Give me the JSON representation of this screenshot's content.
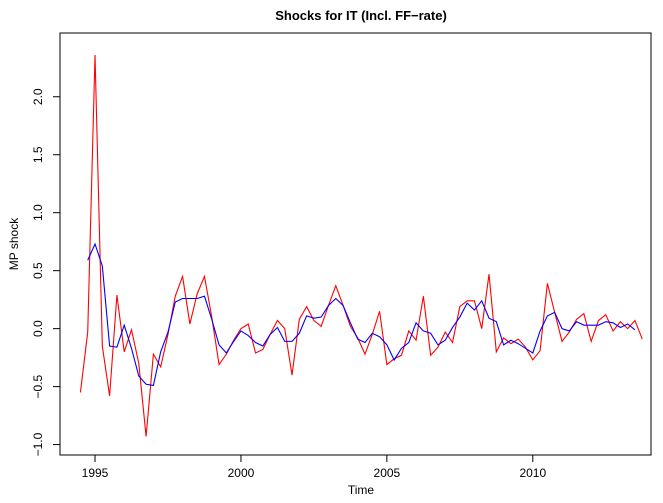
{
  "chart_data": {
    "type": "line",
    "title": "Shocks for IT (Incl. FF−rate)",
    "x_label": "Time",
    "y_label": "MP shock",
    "x": [
      1994.5,
      1994.75,
      1995,
      1995.25,
      1995.5,
      1995.75,
      1996,
      1996.25,
      1996.5,
      1996.75,
      1997,
      1997.25,
      1997.5,
      1997.75,
      1998,
      1998.25,
      1998.5,
      1998.75,
      1999,
      1999.25,
      1999.5,
      1999.75,
      2000,
      2000.25,
      2000.5,
      2000.75,
      2001,
      2001.25,
      2001.5,
      2001.75,
      2002,
      2002.25,
      2002.5,
      2002.75,
      2003,
      2003.25,
      2003.5,
      2003.75,
      2004,
      2004.25,
      2004.5,
      2004.75,
      2005,
      2005.25,
      2005.5,
      2005.75,
      2006,
      2006.25,
      2006.5,
      2006.75,
      2007,
      2007.25,
      2007.5,
      2007.75,
      2008,
      2008.25,
      2008.5,
      2008.75,
      2009,
      2009.25,
      2009.5,
      2009.75,
      2010,
      2010.25,
      2010.5,
      2010.75,
      2011,
      2011.25,
      2011.5,
      2011.75,
      2012,
      2012.25,
      2012.5,
      2012.75,
      2013,
      2013.25,
      2013.5,
      2013.75
    ],
    "series": [
      {
        "color": "#ff0000",
        "values": [
          -0.55,
          -0.03,
          2.36,
          -0.15,
          -0.58,
          0.29,
          -0.2,
          -0.01,
          -0.3,
          -0.93,
          -0.22,
          -0.33,
          -0.05,
          0.28,
          0.45,
          0.04,
          0.3,
          0.45,
          0.1,
          -0.31,
          -0.22,
          -0.1,
          0.0,
          0.04,
          -0.21,
          -0.18,
          -0.05,
          0.07,
          0.0,
          -0.4,
          0.08,
          0.19,
          0.07,
          0.02,
          0.2,
          0.37,
          0.2,
          0.02,
          -0.08,
          -0.22,
          -0.05,
          0.15,
          -0.31,
          -0.26,
          -0.23,
          -0.02,
          -0.1,
          0.28,
          -0.23,
          -0.16,
          -0.03,
          -0.12,
          0.19,
          0.24,
          0.24,
          0.0,
          0.47,
          -0.2,
          -0.08,
          -0.13,
          -0.09,
          -0.16,
          -0.27,
          -0.19,
          0.39,
          0.14,
          -0.11,
          -0.03,
          0.08,
          0.13,
          -0.11,
          0.07,
          0.12,
          -0.02,
          0.06,
          0.0,
          0.07,
          -0.09
        ]
      },
      {
        "color": "#0000ff",
        "values": [
          null,
          0.59,
          0.73,
          0.54,
          -0.15,
          -0.16,
          0.03,
          -0.17,
          -0.41,
          -0.48,
          -0.49,
          -0.2,
          -0.03,
          0.23,
          0.26,
          0.26,
          0.26,
          0.28,
          0.08,
          -0.14,
          -0.21,
          -0.11,
          -0.02,
          -0.06,
          -0.12,
          -0.15,
          -0.05,
          0.01,
          -0.11,
          -0.11,
          -0.04,
          0.11,
          0.09,
          0.1,
          0.2,
          0.26,
          0.2,
          0.05,
          -0.09,
          -0.12,
          -0.04,
          -0.07,
          -0.14,
          -0.27,
          -0.17,
          -0.12,
          0.05,
          -0.02,
          -0.04,
          -0.14,
          -0.1,
          0.01,
          0.1,
          0.22,
          0.16,
          0.24,
          0.09,
          0.06,
          -0.14,
          -0.1,
          -0.13,
          -0.17,
          -0.21,
          -0.02,
          0.11,
          0.14,
          0.0,
          -0.02,
          0.06,
          0.03,
          0.03,
          0.03,
          0.06,
          0.05,
          0.01,
          0.04,
          -0.01,
          null
        ]
      }
    ],
    "xlim": [
      1993.8,
      2014.05
    ],
    "xticks": [
      1995,
      2000,
      2005,
      2010
    ],
    "ylim": [
      -1.09,
      2.55
    ],
    "yticks": [
      {
        "value": -1,
        "label": "−1.0"
      },
      {
        "value": -0.5,
        "label": "−0.5"
      },
      {
        "value": 0,
        "label": "0.0"
      },
      0.5,
      {
        "value": 1,
        "label": "1.0"
      },
      1.5,
      {
        "value": 2,
        "label": "2.0"
      }
    ]
  }
}
